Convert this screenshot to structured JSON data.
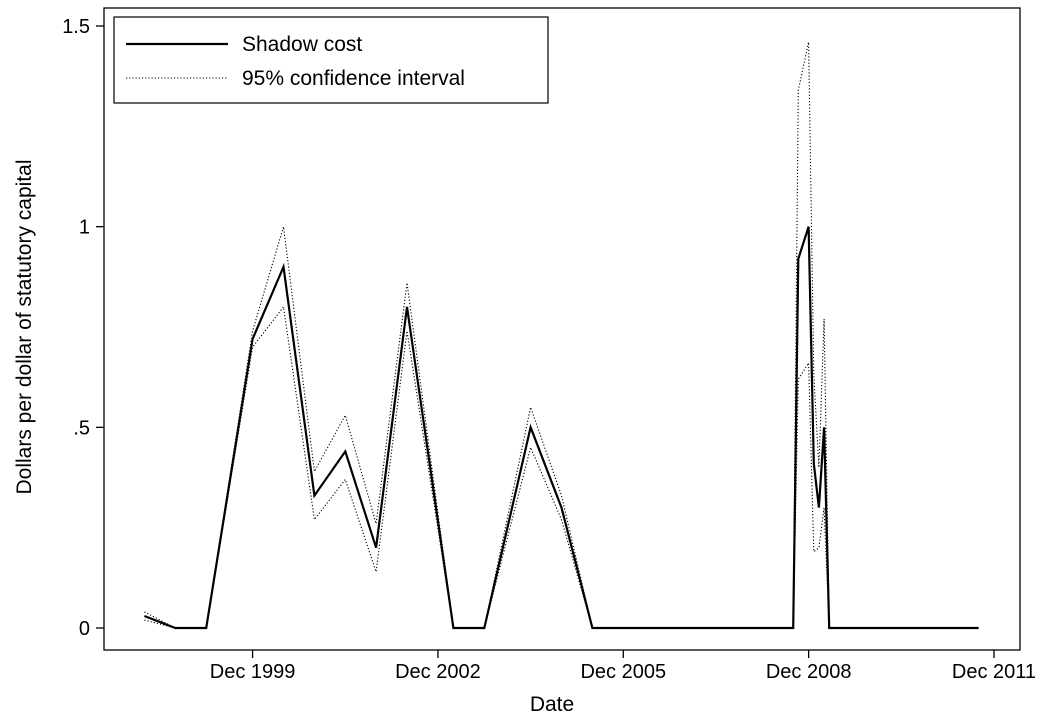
{
  "chart_data": {
    "type": "line",
    "xlabel": "Date",
    "ylabel": "Dollars per dollar of statutory capital",
    "xlim": [
      "1997-12",
      "2011-12"
    ],
    "ylim": [
      0,
      1.5
    ],
    "x_ticks": [
      {
        "date": "1999-12",
        "label": "Dec 1999"
      },
      {
        "date": "2002-12",
        "label": "Dec 2002"
      },
      {
        "date": "2005-12",
        "label": "Dec 2005"
      },
      {
        "date": "2008-12",
        "label": "Dec 2008"
      },
      {
        "date": "2011-12",
        "label": "Dec 2011"
      }
    ],
    "y_ticks": [
      {
        "value": 0,
        "label": "0"
      },
      {
        "value": 0.5,
        "label": ".5"
      },
      {
        "value": 1,
        "label": "1"
      },
      {
        "value": 1.5,
        "label": "1.5"
      }
    ],
    "grid": false,
    "legend_position": "top-left",
    "series": [
      {
        "name": "Shadow cost",
        "style": "solid",
        "points": [
          [
            "1998-03",
            0.03
          ],
          [
            "1998-09",
            0.0
          ],
          [
            "1999-03",
            0.0
          ],
          [
            "1999-12",
            0.72
          ],
          [
            "2000-06",
            0.9
          ],
          [
            "2000-12",
            0.33
          ],
          [
            "2001-06",
            0.44
          ],
          [
            "2001-12",
            0.2
          ],
          [
            "2002-06",
            0.8
          ],
          [
            "2003-03",
            0.0
          ],
          [
            "2003-09",
            0.0
          ],
          [
            "2004-06",
            0.5
          ],
          [
            "2004-12",
            0.3
          ],
          [
            "2005-06",
            0.0
          ],
          [
            "2008-09",
            0.0
          ],
          [
            "2008-10",
            0.92
          ],
          [
            "2008-12",
            1.0
          ],
          [
            "2009-01",
            0.41
          ],
          [
            "2009-02",
            0.3
          ],
          [
            "2009-03",
            0.5
          ],
          [
            "2009-04",
            0.0
          ],
          [
            "2011-09",
            0.0
          ]
        ]
      },
      {
        "name": "95% confidence interval",
        "style": "dotted",
        "points": [
          [
            "1998-03",
            0.04
          ],
          [
            "1998-09",
            0.0
          ],
          [
            "1999-03",
            0.0
          ],
          [
            "1999-12",
            0.74
          ],
          [
            "2000-06",
            1.0
          ],
          [
            "2000-12",
            0.39
          ],
          [
            "2001-06",
            0.53
          ],
          [
            "2001-12",
            0.26
          ],
          [
            "2002-06",
            0.86
          ],
          [
            "2003-03",
            0.0
          ],
          [
            "2003-09",
            0.0
          ],
          [
            "2004-06",
            0.55
          ],
          [
            "2004-12",
            0.33
          ],
          [
            "2005-06",
            0.0
          ],
          [
            "2008-09",
            0.0
          ],
          [
            "2008-10",
            1.34
          ],
          [
            "2008-12",
            1.46
          ],
          [
            "2009-01",
            0.63
          ],
          [
            "2009-02",
            0.4
          ],
          [
            "2009-03",
            0.77
          ],
          [
            "2009-04",
            0.0
          ],
          [
            "2011-09",
            0.0
          ]
        ]
      },
      {
        "name": "95% confidence interval (lower)",
        "style": "dotted",
        "points": [
          [
            "1998-03",
            0.02
          ],
          [
            "1998-09",
            0.0
          ],
          [
            "1999-03",
            0.0
          ],
          [
            "1999-12",
            0.7
          ],
          [
            "2000-06",
            0.8
          ],
          [
            "2000-12",
            0.27
          ],
          [
            "2001-06",
            0.37
          ],
          [
            "2001-12",
            0.14
          ],
          [
            "2002-06",
            0.74
          ],
          [
            "2003-03",
            0.0
          ],
          [
            "2003-09",
            0.0
          ],
          [
            "2004-06",
            0.45
          ],
          [
            "2004-12",
            0.27
          ],
          [
            "2005-06",
            0.0
          ],
          [
            "2008-09",
            0.0
          ],
          [
            "2008-10",
            0.62
          ],
          [
            "2008-12",
            0.66
          ],
          [
            "2009-01",
            0.19
          ],
          [
            "2009-02",
            0.2
          ],
          [
            "2009-03",
            0.3
          ],
          [
            "2009-04",
            0.0
          ],
          [
            "2011-09",
            0.0
          ]
        ]
      }
    ],
    "legend": [
      {
        "label": "Shadow cost",
        "style": "solid"
      },
      {
        "label": "95% confidence interval",
        "style": "dotted"
      }
    ]
  }
}
